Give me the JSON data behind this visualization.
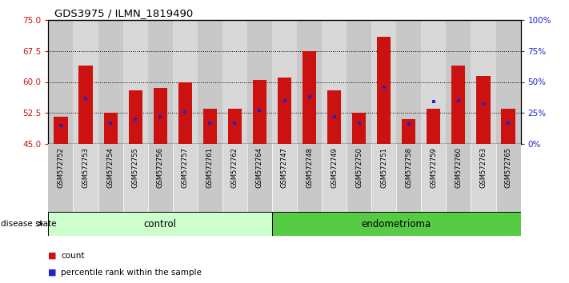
{
  "title": "GDS3975 / ILMN_1819490",
  "samples": [
    "GSM572752",
    "GSM572753",
    "GSM572754",
    "GSM572755",
    "GSM572756",
    "GSM572757",
    "GSM572761",
    "GSM572762",
    "GSM572764",
    "GSM572747",
    "GSM572748",
    "GSM572749",
    "GSM572750",
    "GSM572751",
    "GSM572758",
    "GSM572759",
    "GSM572760",
    "GSM572763",
    "GSM572765"
  ],
  "count_values": [
    51.5,
    64.0,
    52.5,
    58.0,
    58.5,
    60.0,
    53.5,
    53.5,
    60.5,
    61.0,
    67.5,
    58.0,
    52.5,
    71.0,
    51.0,
    53.5,
    64.0,
    61.5,
    53.5
  ],
  "percentile_values": [
    15,
    37,
    17,
    20,
    22,
    26,
    17,
    17,
    27,
    35,
    38,
    22,
    17,
    46,
    16,
    34,
    35,
    32,
    17
  ],
  "n_control": 9,
  "n_endometrioma": 10,
  "y_min": 45,
  "y_max": 75,
  "y_ticks_left": [
    45,
    52.5,
    60,
    67.5,
    75
  ],
  "y_ticks_right": [
    0,
    25,
    50,
    75,
    100
  ],
  "bar_color": "#cc1111",
  "percentile_color": "#2222cc",
  "control_color": "#ccffcc",
  "endometrioma_color": "#55cc44",
  "col_bg_odd": "#d0d0d0",
  "col_bg_even": "#c0c0c0",
  "legend_items": [
    "count",
    "percentile rank within the sample"
  ]
}
